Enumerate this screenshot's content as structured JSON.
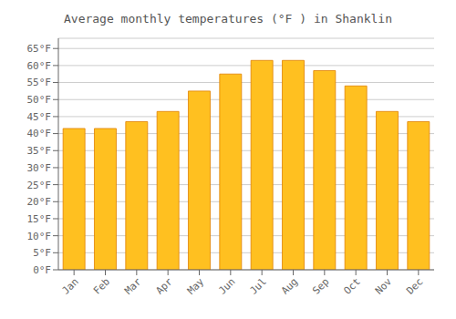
{
  "chart_data": {
    "type": "bar",
    "title": "Average monthly temperatures (°F ) in Shanklin",
    "categories": [
      "Jan",
      "Feb",
      "Mar",
      "Apr",
      "May",
      "Jun",
      "Jul",
      "Aug",
      "Sep",
      "Oct",
      "Nov",
      "Dec"
    ],
    "values": [
      41.5,
      41.5,
      43.5,
      46.5,
      52.5,
      57.5,
      61.5,
      61.5,
      58.5,
      54.0,
      46.5,
      43.5
    ],
    "color": "#FFC020",
    "ylim": [
      0,
      68
    ],
    "yticks": [
      {
        "value": 0,
        "label": "0°F"
      },
      {
        "value": 5,
        "label": "5°F"
      },
      {
        "value": 10,
        "label": "10°F"
      },
      {
        "value": 15,
        "label": "15°F"
      },
      {
        "value": 20,
        "label": "20°F"
      },
      {
        "value": 25,
        "label": "25°F"
      },
      {
        "value": 30,
        "label": "30°F"
      },
      {
        "value": 35,
        "label": "35°F"
      },
      {
        "value": 40,
        "label": "40°F"
      },
      {
        "value": 45,
        "label": "45°F"
      },
      {
        "value": 50,
        "label": "50°F"
      },
      {
        "value": 55,
        "label": "55°F"
      },
      {
        "value": 60,
        "label": "60°F"
      },
      {
        "value": 65,
        "label": "65°F"
      }
    ],
    "grid": true
  }
}
